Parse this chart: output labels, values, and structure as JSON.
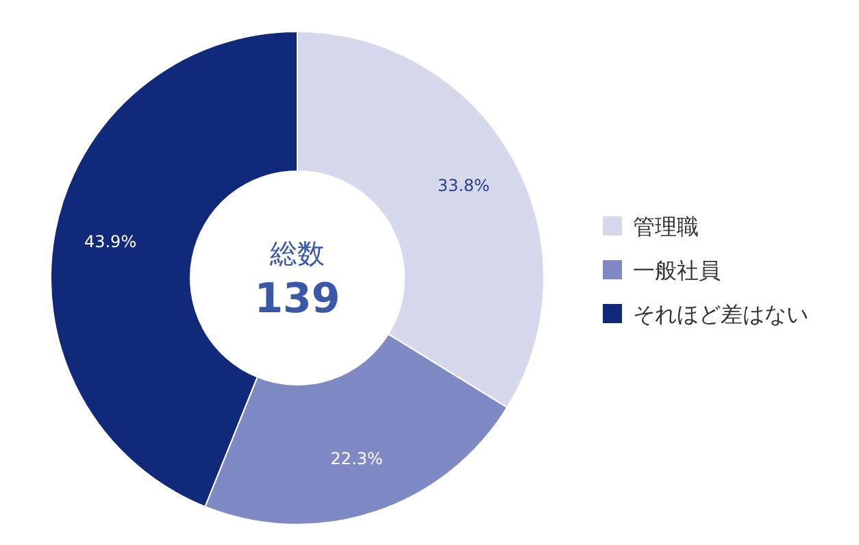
{
  "chart_data": {
    "type": "donut",
    "categories": [
      "管理職",
      "一般社員",
      "それほど差はない"
    ],
    "values": [
      33.8,
      22.3,
      43.9
    ],
    "colors": [
      "#d6d9ec",
      "#7f8ac4",
      "#11297a"
    ],
    "value_labels": [
      "33.8%",
      "22.3%",
      "43.9%"
    ],
    "annotations": [
      "総数",
      "139"
    ],
    "legend": "right"
  }
}
